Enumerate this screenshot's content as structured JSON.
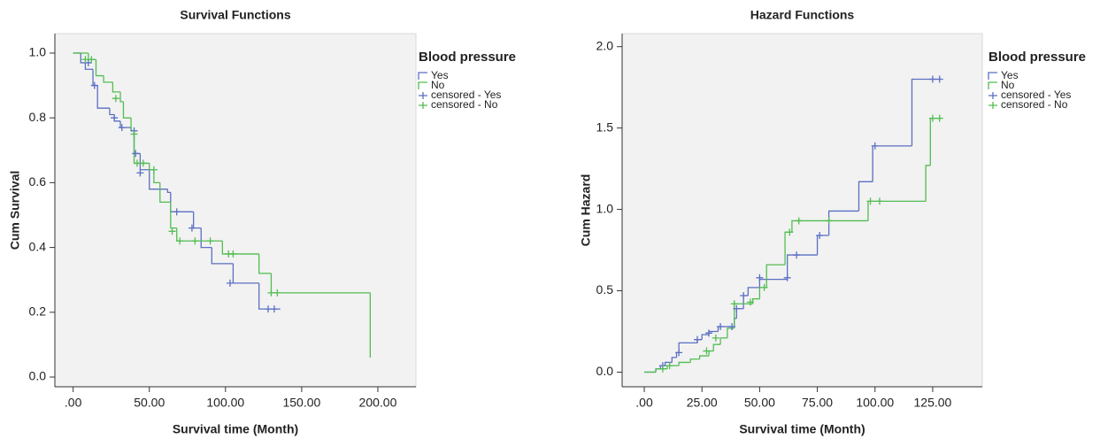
{
  "chart_data": [
    {
      "type": "step",
      "title": "Survival Functions",
      "xlabel": "Survival time (Month)",
      "ylabel": "Cum Survival",
      "legend_title": "Blood pressure",
      "xlim": [
        -12,
        225
      ],
      "ylim": [
        -0.03,
        1.06
      ],
      "xticks": [
        {
          "value": 0,
          "label": ".00"
        },
        {
          "value": 50,
          "label": "50.00"
        },
        {
          "value": 100,
          "label": "100.00"
        },
        {
          "value": 150,
          "label": "150.00"
        },
        {
          "value": 200,
          "label": "200.00"
        }
      ],
      "yticks": [
        {
          "value": 0,
          "label": "0.0"
        },
        0.2,
        0.4,
        0.6,
        0.8,
        {
          "value": 1,
          "label": "1.0"
        }
      ],
      "series": [
        {
          "name": "Yes",
          "color": "#5b6fc2",
          "marker": "line",
          "x": [
            0,
            5,
            8,
            13,
            16,
            24,
            27,
            31,
            38,
            40,
            44,
            50,
            62,
            64,
            79,
            84,
            91,
            105,
            122,
            136
          ],
          "values": [
            1.0,
            0.97,
            0.95,
            0.9,
            0.83,
            0.81,
            0.79,
            0.77,
            0.76,
            0.69,
            0.64,
            0.58,
            0.57,
            0.51,
            0.46,
            0.4,
            0.35,
            0.29,
            0.21,
            0.21
          ]
        },
        {
          "name": "No",
          "color": "#52bd52",
          "marker": "line",
          "x": [
            0,
            10,
            15,
            20,
            26,
            31,
            33,
            38,
            40,
            50,
            53,
            57,
            64,
            68,
            98,
            122,
            130,
            195
          ],
          "values": [
            1.0,
            0.98,
            0.93,
            0.91,
            0.88,
            0.85,
            0.8,
            0.76,
            0.66,
            0.64,
            0.6,
            0.54,
            0.46,
            0.42,
            0.38,
            0.32,
            0.26,
            0.06
          ]
        },
        {
          "name": "censored - Yes",
          "color": "#5b6fc2",
          "marker": "plus",
          "x": [
            10,
            14,
            27,
            32,
            40,
            41,
            44,
            68,
            78,
            103,
            128,
            132
          ],
          "values": [
            0.97,
            0.9,
            0.8,
            0.77,
            0.76,
            0.69,
            0.63,
            0.51,
            0.46,
            0.29,
            0.21,
            0.21
          ]
        },
        {
          "name": "censored - No",
          "color": "#52bd52",
          "marker": "plus",
          "x": [
            8,
            12,
            28,
            40,
            42,
            46,
            53,
            65,
            70,
            80,
            90,
            102,
            105,
            130,
            134
          ],
          "values": [
            0.98,
            0.98,
            0.86,
            0.75,
            0.66,
            0.66,
            0.64,
            0.45,
            0.42,
            0.42,
            0.42,
            0.38,
            0.38,
            0.26,
            0.26
          ]
        }
      ]
    },
    {
      "type": "step",
      "title": "Hazard Functions",
      "xlabel": "Survival time (Month)",
      "ylabel": "Cum Hazard",
      "legend_title": "Blood pressure",
      "xlim": [
        -9.6,
        146.5
      ],
      "ylim": [
        -0.09,
        2.08
      ],
      "xticks": [
        {
          "value": 0,
          "label": ".00"
        },
        {
          "value": 25,
          "label": "25.00"
        },
        {
          "value": 50,
          "label": "50.00"
        },
        {
          "value": 75,
          "label": "75.00"
        },
        {
          "value": 100,
          "label": "100.00"
        },
        {
          "value": 125,
          "label": "125.00"
        }
      ],
      "yticks": [
        {
          "value": 0,
          "label": "0.0"
        },
        0.5,
        {
          "value": 1,
          "label": "1.0"
        },
        1.5,
        {
          "value": 2,
          "label": "2.0"
        }
      ],
      "series": [
        {
          "name": "Yes",
          "color": "#5b6fc2",
          "marker": "line",
          "x": [
            0,
            5,
            7,
            9,
            12,
            14,
            15,
            23,
            25,
            28,
            32,
            39,
            40,
            43,
            45,
            50,
            62,
            75,
            80,
            93,
            99,
            116,
            128
          ],
          "values": [
            0,
            0.02,
            0.04,
            0.06,
            0.09,
            0.12,
            0.18,
            0.2,
            0.23,
            0.25,
            0.28,
            0.33,
            0.39,
            0.47,
            0.52,
            0.57,
            0.72,
            0.84,
            0.99,
            1.17,
            1.39,
            1.8,
            1.8
          ]
        },
        {
          "name": "No",
          "color": "#52bd52",
          "marker": "line",
          "x": [
            0,
            5,
            10,
            15,
            20,
            24,
            28,
            30,
            33,
            36,
            39,
            47,
            50,
            53,
            61,
            64,
            97,
            122,
            124,
            128
          ],
          "values": [
            0,
            0.02,
            0.04,
            0.06,
            0.08,
            0.1,
            0.13,
            0.17,
            0.21,
            0.27,
            0.42,
            0.45,
            0.52,
            0.66,
            0.86,
            0.93,
            1.05,
            1.27,
            1.56,
            1.56
          ]
        },
        {
          "name": "censored - Yes",
          "color": "#5b6fc2",
          "marker": "plus",
          "x": [
            8,
            15,
            23,
            28,
            33,
            38,
            40,
            43,
            50,
            62,
            66,
            76,
            100,
            125,
            128
          ],
          "values": [
            0.04,
            0.12,
            0.2,
            0.24,
            0.28,
            0.28,
            0.39,
            0.47,
            0.58,
            0.58,
            0.72,
            0.84,
            1.39,
            1.8,
            1.8
          ]
        },
        {
          "name": "censored - No",
          "color": "#52bd52",
          "marker": "plus",
          "x": [
            8,
            11,
            27,
            31,
            39,
            46,
            52,
            63,
            67,
            80,
            98,
            102,
            125,
            128
          ],
          "values": [
            0.02,
            0.04,
            0.13,
            0.21,
            0.42,
            0.43,
            0.52,
            0.86,
            0.93,
            0.93,
            1.05,
            1.05,
            1.56,
            1.56
          ]
        }
      ]
    }
  ]
}
